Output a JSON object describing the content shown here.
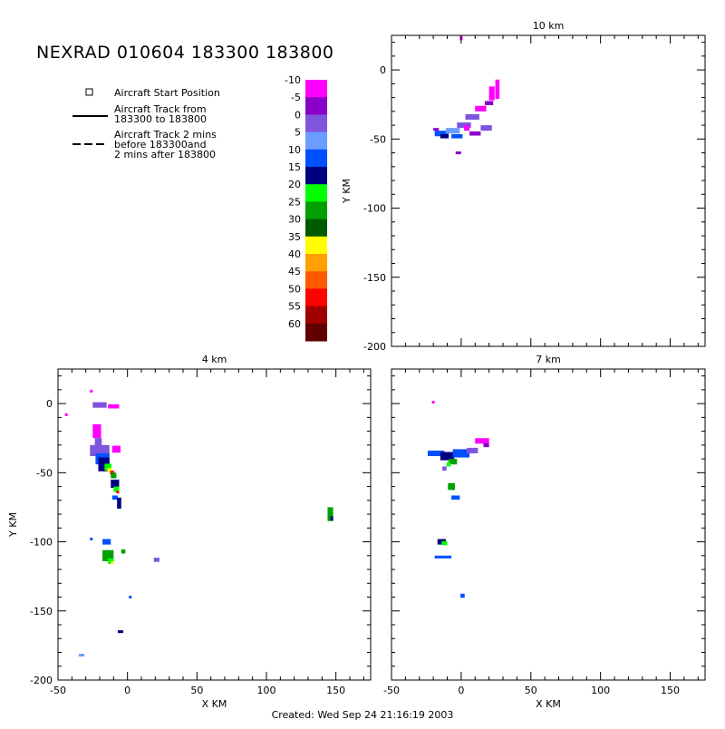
{
  "title": "NEXRAD 010604 183300 183800",
  "footer": "Created: Wed Sep 24 21:16:19 2003",
  "legend": {
    "start": "Aircraft Start Position",
    "track_line1": "Aircraft Track from",
    "track_line2": "183300 to 183800",
    "track2_line1": "Aircraft Track 2 mins",
    "track2_line2": "before 183300and",
    "track2_line3": "2 mins after 183800"
  },
  "colorbar": {
    "labels": [
      "-10",
      "-5",
      "0",
      "5",
      "10",
      "15",
      "20",
      "25",
      "30",
      "35",
      "40",
      "45",
      "50",
      "55",
      "60"
    ],
    "colors": [
      "#ff00ff",
      "#8b00c8",
      "#7f55dd",
      "#6b9cff",
      "#0050ff",
      "#000080",
      "#00ff00",
      "#00a000",
      "#005a00",
      "#ffff00",
      "#ffa000",
      "#ff5a00",
      "#ff0000",
      "#a00000",
      "#600000"
    ]
  },
  "chart_data": [
    {
      "type": "heatmap",
      "title": "10 km",
      "xlabel": "",
      "ylabel": "Y KM",
      "xlim": [
        -50,
        175
      ],
      "ylim": [
        -200,
        25
      ],
      "xticks": [],
      "yticks": [
        "0",
        "-50",
        "-100",
        "-150",
        "-200"
      ],
      "echoes": [
        {
          "x": -14,
          "y": -46,
          "w": 10,
          "h": 4,
          "c": "#0050ff"
        },
        {
          "x": -12,
          "y": -48,
          "w": 6,
          "h": 3,
          "c": "#000080"
        },
        {
          "x": -6,
          "y": -44,
          "w": 10,
          "h": 4,
          "c": "#6b9cff"
        },
        {
          "x": -3,
          "y": -48,
          "w": 8,
          "h": 3,
          "c": "#0050ff"
        },
        {
          "x": 2,
          "y": -40,
          "w": 10,
          "h": 4,
          "c": "#7f55dd"
        },
        {
          "x": 8,
          "y": -34,
          "w": 10,
          "h": 4,
          "c": "#7f55dd"
        },
        {
          "x": 14,
          "y": -28,
          "w": 8,
          "h": 4,
          "c": "#ff00ff"
        },
        {
          "x": 20,
          "y": -24,
          "w": 6,
          "h": 3,
          "c": "#8b00c8"
        },
        {
          "x": 22,
          "y": -17,
          "w": 4,
          "h": 10,
          "c": "#ff00ff"
        },
        {
          "x": 26,
          "y": -14,
          "w": 3,
          "h": 14,
          "c": "#ff00ff"
        },
        {
          "x": 18,
          "y": -42,
          "w": 8,
          "h": 4,
          "c": "#7f55dd"
        },
        {
          "x": 10,
          "y": -46,
          "w": 8,
          "h": 3,
          "c": "#8b00c8"
        },
        {
          "x": 4,
          "y": -42,
          "w": 4,
          "h": 4,
          "c": "#ff00ff"
        },
        {
          "x": -2,
          "y": -60,
          "w": 4,
          "h": 2,
          "c": "#8b00c8"
        },
        {
          "x": -18,
          "y": -43,
          "w": 4,
          "h": 2,
          "c": "#8b00c8"
        },
        {
          "x": 0,
          "y": 23,
          "w": 2,
          "h": 3,
          "c": "#ff00ff"
        }
      ]
    },
    {
      "type": "heatmap",
      "title": "4 km",
      "xlabel": "X KM",
      "ylabel": "Y KM",
      "xlim": [
        -50,
        175
      ],
      "ylim": [
        -200,
        25
      ],
      "xticks": [
        "-50",
        "0",
        "50",
        "100",
        "150"
      ],
      "yticks": [
        "0",
        "-50",
        "-100",
        "-150",
        "-200"
      ],
      "echoes": [
        {
          "x": -20,
          "y": -1,
          "w": 10,
          "h": 4,
          "c": "#7f55dd"
        },
        {
          "x": -10,
          "y": -2,
          "w": 8,
          "h": 3,
          "c": "#ff00ff"
        },
        {
          "x": -22,
          "y": -20,
          "w": 6,
          "h": 10,
          "c": "#ff00ff"
        },
        {
          "x": -21,
          "y": -28,
          "w": 5,
          "h": 6,
          "c": "#7f55dd"
        },
        {
          "x": -20,
          "y": -34,
          "w": 14,
          "h": 8,
          "c": "#7f55dd"
        },
        {
          "x": -8,
          "y": -33,
          "w": 6,
          "h": 5,
          "c": "#ff00ff"
        },
        {
          "x": -18,
          "y": -40,
          "w": 10,
          "h": 8,
          "c": "#0050ff"
        },
        {
          "x": -17,
          "y": -44,
          "w": 8,
          "h": 10,
          "c": "#000080"
        },
        {
          "x": -14,
          "y": -46,
          "w": 5,
          "h": 5,
          "c": "#00ff00"
        },
        {
          "x": -13,
          "y": -48,
          "w": 3,
          "h": 3,
          "c": "#ffff00"
        },
        {
          "x": -11,
          "y": -50,
          "w": 3,
          "h": 3,
          "c": "#ff0000"
        },
        {
          "x": -10,
          "y": -52,
          "w": 4,
          "h": 4,
          "c": "#00a000"
        },
        {
          "x": -9,
          "y": -58,
          "w": 6,
          "h": 6,
          "c": "#000080"
        },
        {
          "x": -8,
          "y": -62,
          "w": 4,
          "h": 4,
          "c": "#00ff00"
        },
        {
          "x": -7,
          "y": -64,
          "w": 2,
          "h": 2,
          "c": "#ff0000"
        },
        {
          "x": -9,
          "y": -68,
          "w": 4,
          "h": 3,
          "c": "#0050ff"
        },
        {
          "x": -6,
          "y": -72,
          "w": 3,
          "h": 8,
          "c": "#000080"
        },
        {
          "x": -15,
          "y": -100,
          "w": 6,
          "h": 4,
          "c": "#0050ff"
        },
        {
          "x": -14,
          "y": -110,
          "w": 8,
          "h": 8,
          "c": "#00a000"
        },
        {
          "x": -12,
          "y": -114,
          "w": 4,
          "h": 4,
          "c": "#00ff00"
        },
        {
          "x": -11,
          "y": -115,
          "w": 2,
          "h": 2,
          "c": "#ffff00"
        },
        {
          "x": -3,
          "y": -107,
          "w": 3,
          "h": 3,
          "c": "#00a000"
        },
        {
          "x": 21,
          "y": -113,
          "w": 4,
          "h": 3,
          "c": "#7f55dd"
        },
        {
          "x": 2,
          "y": -140,
          "w": 2,
          "h": 2,
          "c": "#0050ff"
        },
        {
          "x": -5,
          "y": -165,
          "w": 4,
          "h": 2,
          "c": "#000080"
        },
        {
          "x": -33,
          "y": -182,
          "w": 4,
          "h": 2,
          "c": "#6b9cff"
        },
        {
          "x": 146,
          "y": -80,
          "w": 4,
          "h": 10,
          "c": "#00a000"
        },
        {
          "x": 147,
          "y": -83,
          "w": 2,
          "h": 3,
          "c": "#000080"
        },
        {
          "x": -44,
          "y": -8,
          "w": 2,
          "h": 2,
          "c": "#ff00ff"
        },
        {
          "x": -26,
          "y": 9,
          "w": 2,
          "h": 2,
          "c": "#ff00ff"
        },
        {
          "x": -26,
          "y": -98,
          "w": 2,
          "h": 2,
          "c": "#0050ff"
        }
      ]
    },
    {
      "type": "heatmap",
      "title": "7 km",
      "xlabel": "X KM",
      "ylabel": "",
      "xlim": [
        -50,
        175
      ],
      "ylim": [
        -200,
        25
      ],
      "xticks": [
        "-50",
        "0",
        "50",
        "100",
        "150"
      ],
      "yticks": [],
      "echoes": [
        {
          "x": -18,
          "y": -36,
          "w": 12,
          "h": 4,
          "c": "#0050ff"
        },
        {
          "x": -10,
          "y": -38,
          "w": 10,
          "h": 6,
          "c": "#000080"
        },
        {
          "x": -6,
          "y": -42,
          "w": 6,
          "h": 4,
          "c": "#00a000"
        },
        {
          "x": -9,
          "y": -44,
          "w": 3,
          "h": 3,
          "c": "#00ff00"
        },
        {
          "x": 0,
          "y": -36,
          "w": 12,
          "h": 6,
          "c": "#0050ff"
        },
        {
          "x": 8,
          "y": -34,
          "w": 8,
          "h": 4,
          "c": "#7f55dd"
        },
        {
          "x": 15,
          "y": -27,
          "w": 10,
          "h": 4,
          "c": "#ff00ff"
        },
        {
          "x": 18,
          "y": -30,
          "w": 4,
          "h": 3,
          "c": "#8b00c8"
        },
        {
          "x": -12,
          "y": -47,
          "w": 3,
          "h": 3,
          "c": "#7f55dd"
        },
        {
          "x": -7,
          "y": -60,
          "w": 5,
          "h": 5,
          "c": "#00a000"
        },
        {
          "x": -4,
          "y": -68,
          "w": 6,
          "h": 3,
          "c": "#0050ff"
        },
        {
          "x": -14,
          "y": -100,
          "w": 6,
          "h": 4,
          "c": "#000080"
        },
        {
          "x": -12,
          "y": -101,
          "w": 4,
          "h": 3,
          "c": "#00ff00"
        },
        {
          "x": -13,
          "y": -111,
          "w": 12,
          "h": 2,
          "c": "#0050ff"
        },
        {
          "x": 1,
          "y": -139,
          "w": 3,
          "h": 3,
          "c": "#0050ff"
        },
        {
          "x": -20,
          "y": 1,
          "w": 2,
          "h": 2,
          "c": "#ff00ff"
        }
      ]
    }
  ]
}
